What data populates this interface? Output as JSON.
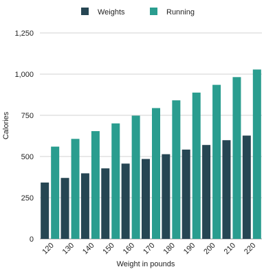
{
  "chart_data": {
    "type": "bar",
    "title": "",
    "xlabel": "Weight in pounds",
    "ylabel": "Calories",
    "categories": [
      "120",
      "130",
      "140",
      "150",
      "160",
      "170",
      "180",
      "190",
      "200",
      "210",
      "220"
    ],
    "series": [
      {
        "name": "Weights",
        "color": "#264653",
        "values": [
          342,
          370,
          398,
          428,
          457,
          485,
          514,
          542,
          570,
          599,
          627
        ]
      },
      {
        "name": "Running",
        "color": "#2a9d8f",
        "values": [
          560,
          607,
          654,
          701,
          748,
          794,
          841,
          888,
          935,
          982,
          1028
        ]
      }
    ],
    "ylim": [
      0,
      1250
    ],
    "yticks": [
      0,
      250,
      500,
      750,
      1000,
      1250
    ],
    "ytick_labels": [
      "0",
      "250",
      "500",
      "750",
      "1,000",
      "1,250"
    ],
    "grid": "horizontal",
    "legend_position": "top-center"
  }
}
